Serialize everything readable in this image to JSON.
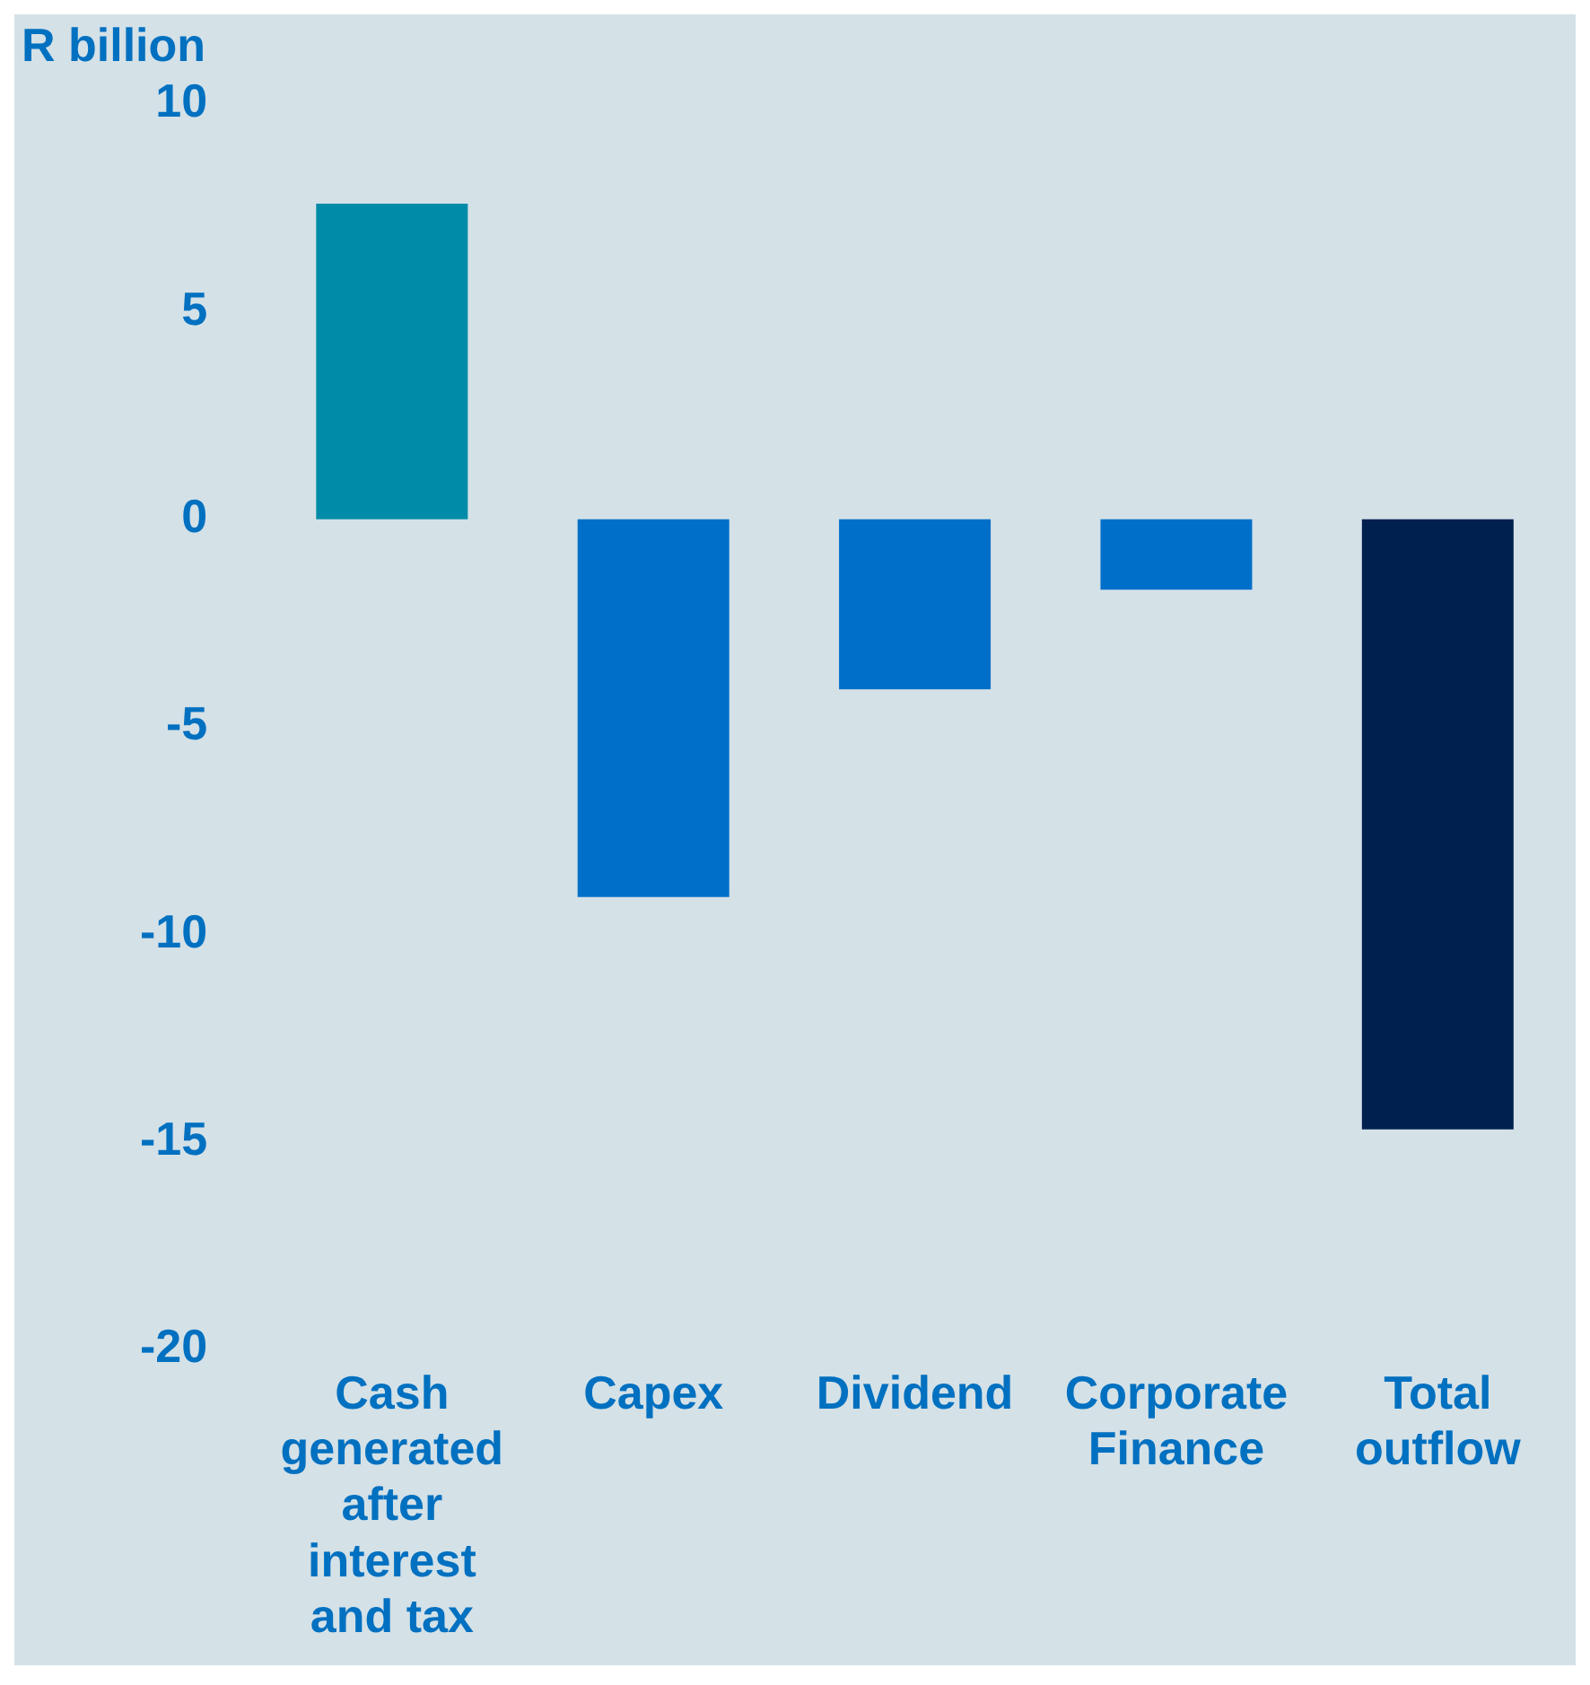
{
  "chart_data": {
    "type": "bar",
    "ylabel": "R billion",
    "categories": [
      "Cash generated after interest and tax",
      "Capex",
      "Dividend",
      "Corporate Finance",
      "Total outflow"
    ],
    "values": [
      7.6,
      -9.1,
      -4.1,
      -1.7,
      -14.7
    ],
    "colors": [
      "#008ca8",
      "#006fc9",
      "#006fc9",
      "#006fc9",
      "#00204f"
    ],
    "ylim": [
      -20,
      10
    ],
    "yticks": [
      -20,
      -15,
      -10,
      -5,
      0,
      5,
      10
    ],
    "grid": false,
    "legend": false
  }
}
